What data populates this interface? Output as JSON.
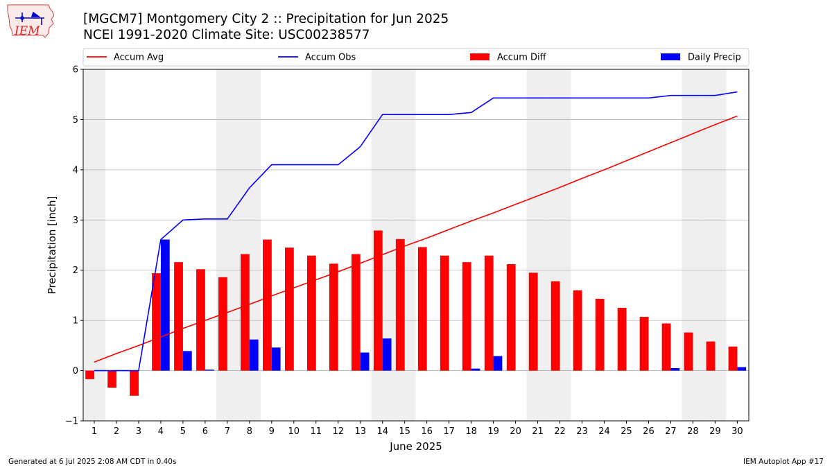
{
  "header": {
    "title": "[MGCM7] Montgomery City 2 :: Precipitation for Jun 2025",
    "subtitle": "NCEI 1991-2020 Climate Site: USC00238577"
  },
  "logo": {
    "text": "IEM",
    "icon": "iowa-state-outline-icon"
  },
  "footer": {
    "left": "Generated at 6 Jul 2025 2:08 AM CDT in 0.40s",
    "right": "IEM Autoplot App #17"
  },
  "colors": {
    "avg": "#ff0000",
    "obs": "#0000ff",
    "diff": "#ff0000",
    "daily": "#0000ff",
    "weekend_shade": "#efefef",
    "grid": "#b0b0b0"
  },
  "chart_data": {
    "type": "bar",
    "xlabel": "June 2025",
    "ylabel": "Precipitation [inch]",
    "ylim": [
      -1,
      6
    ],
    "yticks": [
      -1,
      0,
      1,
      2,
      3,
      4,
      5,
      6
    ],
    "grid": "horizontal",
    "legend": "top",
    "categories": [
      "1",
      "2",
      "3",
      "4",
      "5",
      "6",
      "7",
      "8",
      "9",
      "10",
      "11",
      "12",
      "13",
      "14",
      "15",
      "16",
      "17",
      "18",
      "19",
      "20",
      "21",
      "22",
      "23",
      "24",
      "25",
      "26",
      "27",
      "28",
      "29",
      "30"
    ],
    "shaded_days": [
      1,
      7,
      8,
      14,
      15,
      21,
      22,
      28,
      29
    ],
    "legend_entries": [
      {
        "name": "Accum Avg",
        "kind": "line",
        "color": "#ff0000"
      },
      {
        "name": "Accum Obs",
        "kind": "line",
        "color": "#0000ff"
      },
      {
        "name": "Accum Diff",
        "kind": "bar",
        "color": "#ff0000"
      },
      {
        "name": "Daily Precip",
        "kind": "bar",
        "color": "#0000ff"
      }
    ],
    "series": [
      {
        "name": "Accum Avg",
        "type": "line",
        "values": [
          0.17,
          0.34,
          0.5,
          0.67,
          0.84,
          1.0,
          1.16,
          1.32,
          1.49,
          1.65,
          1.81,
          1.97,
          2.14,
          2.31,
          2.48,
          2.64,
          2.81,
          2.98,
          3.14,
          3.31,
          3.48,
          3.65,
          3.83,
          4.0,
          4.18,
          4.36,
          4.54,
          4.72,
          4.9,
          5.07
        ]
      },
      {
        "name": "Accum Obs",
        "type": "line",
        "values": [
          0.0,
          0.0,
          0.0,
          2.61,
          3.0,
          3.02,
          3.02,
          3.64,
          4.1,
          4.1,
          4.1,
          4.1,
          4.46,
          5.1,
          5.1,
          5.1,
          5.1,
          5.14,
          5.43,
          5.43,
          5.43,
          5.43,
          5.43,
          5.43,
          5.43,
          5.43,
          5.48,
          5.48,
          5.48,
          5.55
        ]
      },
      {
        "name": "Accum Diff",
        "type": "bar",
        "values": [
          -0.17,
          -0.34,
          -0.5,
          1.94,
          2.16,
          2.02,
          1.86,
          2.32,
          2.61,
          2.45,
          2.29,
          2.13,
          2.32,
          2.79,
          2.62,
          2.46,
          2.29,
          2.16,
          2.29,
          2.12,
          1.95,
          1.78,
          1.6,
          1.43,
          1.25,
          1.07,
          0.94,
          0.76,
          0.58,
          0.48
        ]
      },
      {
        "name": "Daily Precip",
        "type": "bar",
        "values": [
          0.0,
          0.0,
          0.0,
          2.61,
          0.39,
          0.02,
          0.0,
          0.62,
          0.46,
          0.0,
          0.0,
          0.0,
          0.36,
          0.64,
          0.0,
          0.0,
          0.0,
          0.04,
          0.29,
          0.0,
          0.0,
          0.0,
          0.0,
          0.0,
          0.0,
          0.0,
          0.05,
          0.0,
          0.0,
          0.07
        ]
      }
    ]
  }
}
